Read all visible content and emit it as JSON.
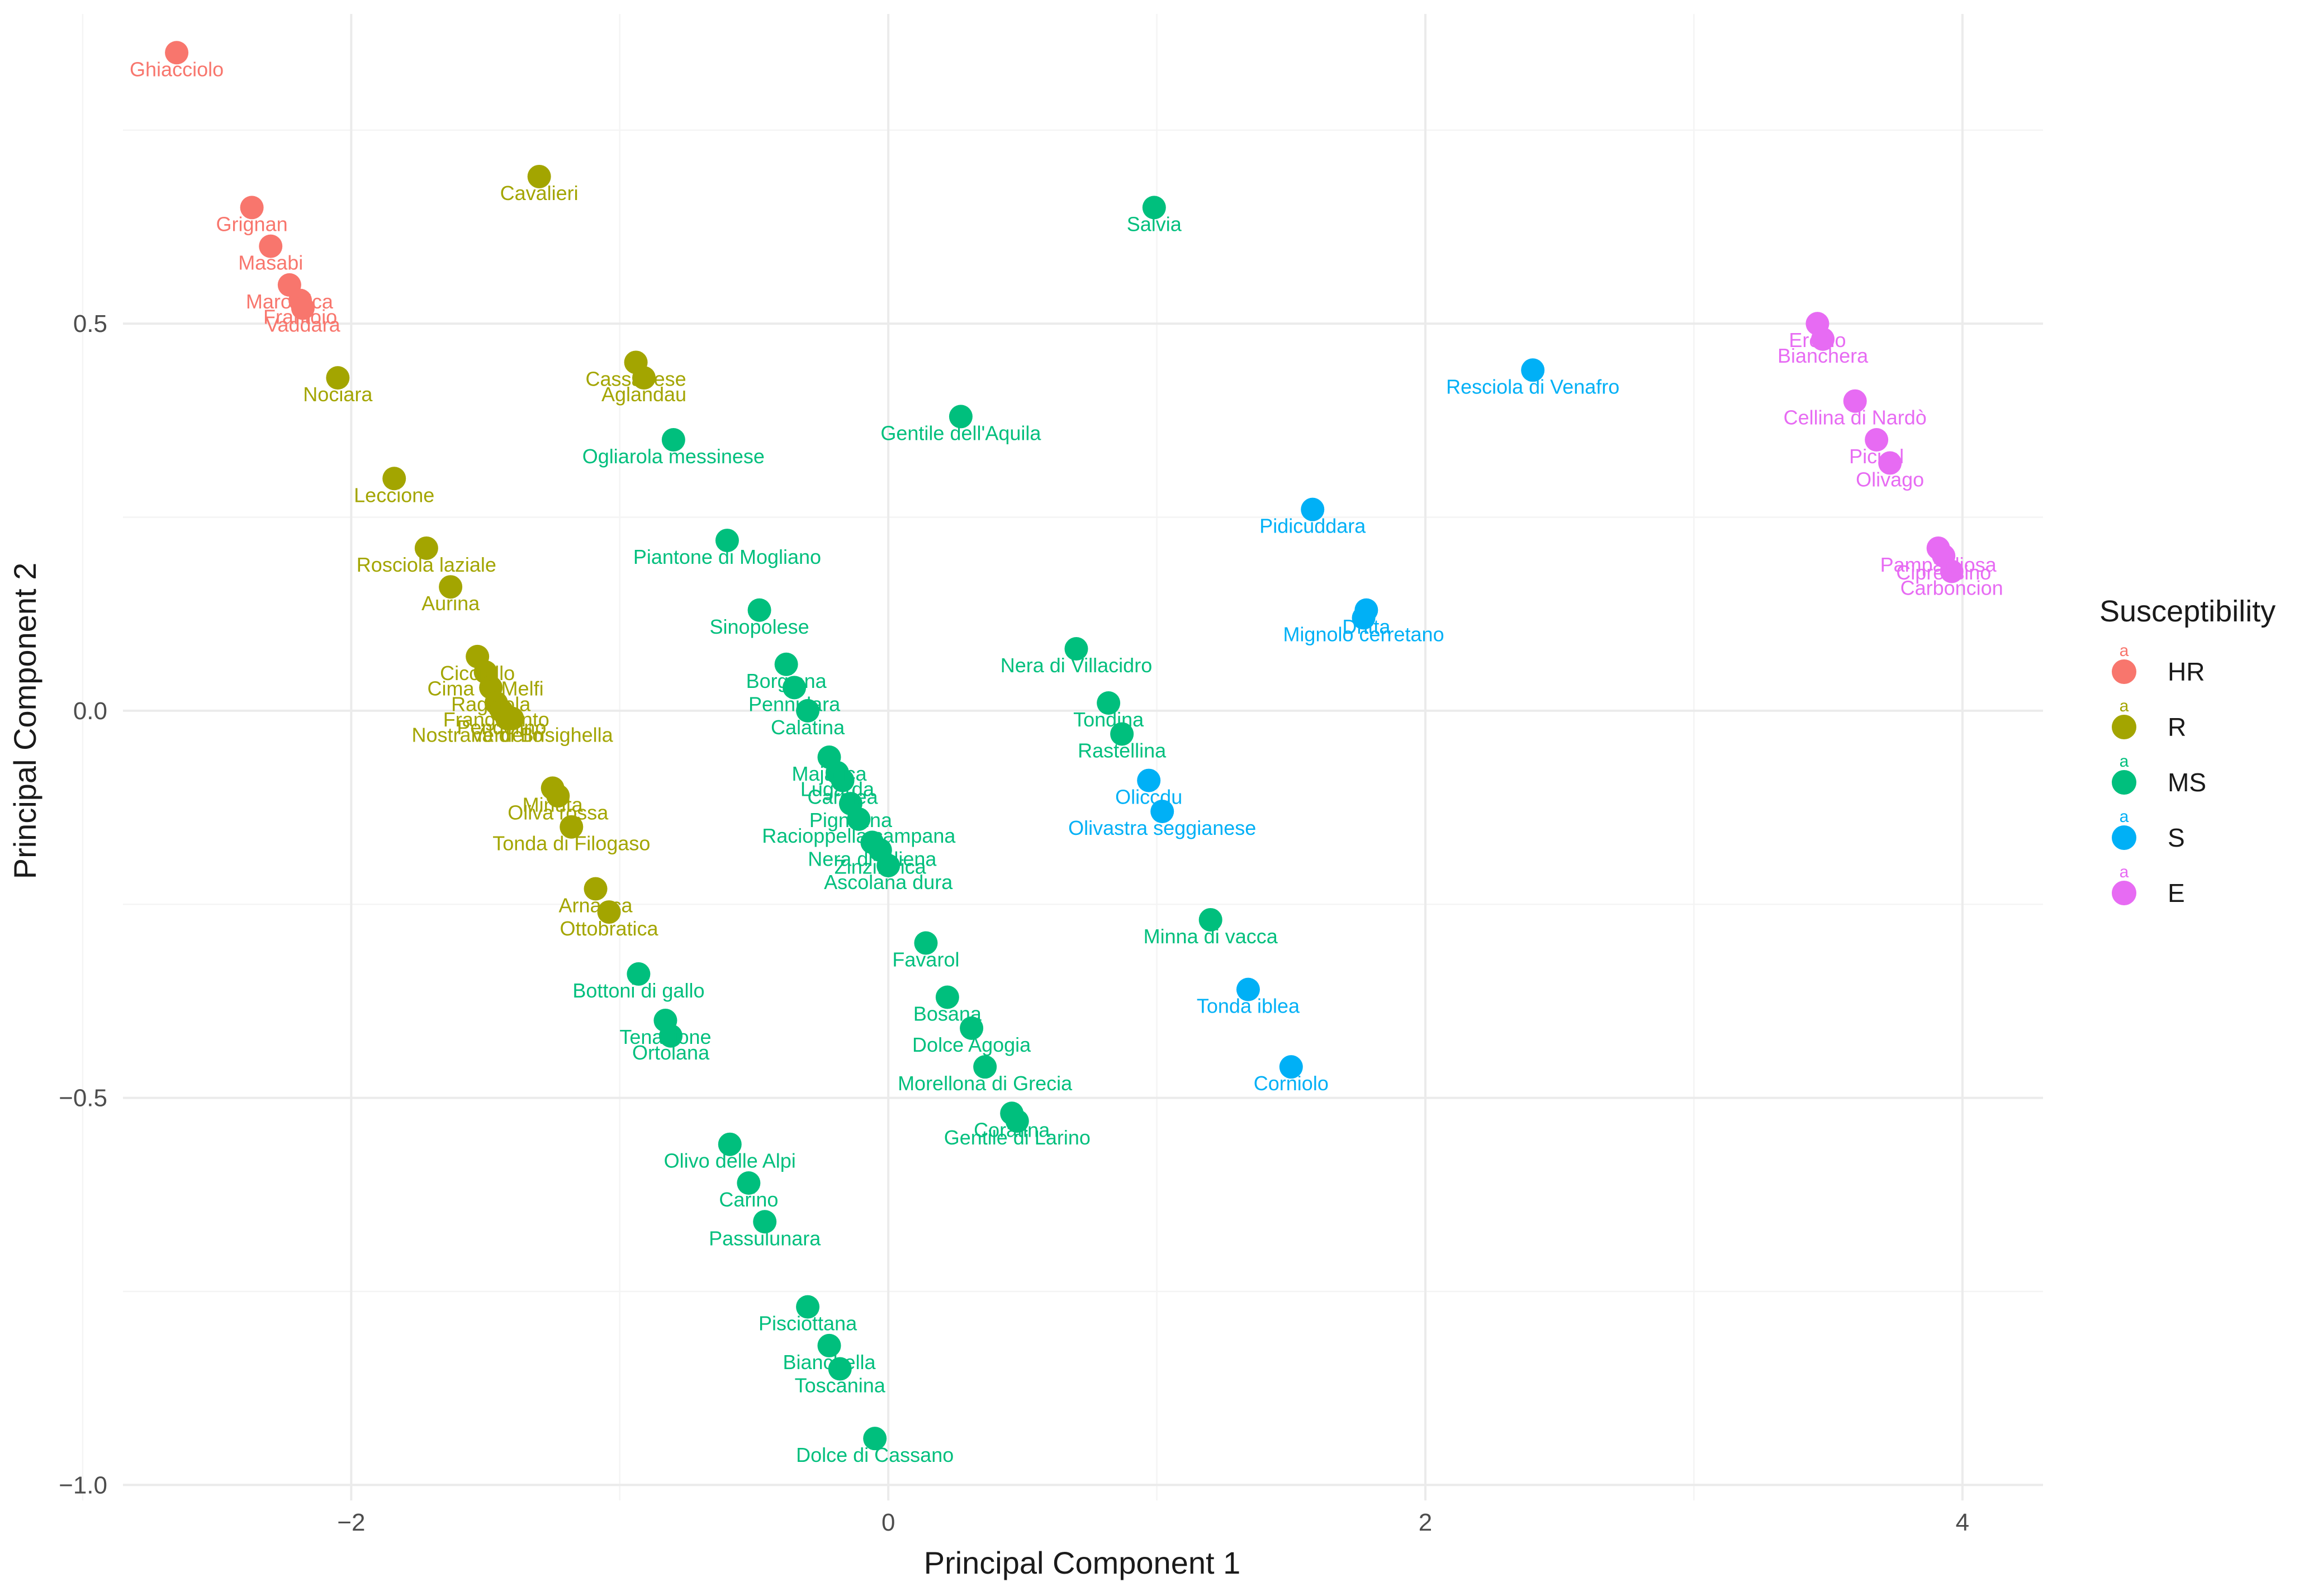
{
  "chart_data": {
    "type": "scatter",
    "title": "",
    "xlabel": "Principal Component 1",
    "ylabel": "Principal Component 2",
    "xlim": [
      -2.85,
      4.3
    ],
    "ylim": [
      -1.02,
      0.9
    ],
    "x_ticks": [
      -2,
      0,
      2,
      4
    ],
    "x_tick_labels": [
      "−2",
      "0",
      "2",
      "4"
    ],
    "x_minor": [
      -3,
      -1,
      1,
      3
    ],
    "y_ticks": [
      -1.0,
      -0.5,
      0.0,
      0.5
    ],
    "y_tick_labels": [
      "−1.0",
      "−0.5",
      "0.0",
      "0.5"
    ],
    "y_minor": [
      -0.75,
      -0.25,
      0.25,
      0.75
    ],
    "grid": true,
    "legend": {
      "title": "Susceptibility",
      "position": "right",
      "key_glyph": "a",
      "items": [
        {
          "name": "HR",
          "color": "#F8766D"
        },
        {
          "name": "R",
          "color": "#A3A500"
        },
        {
          "name": "MS",
          "color": "#00BF7D"
        },
        {
          "name": "S",
          "color": "#00B0F6"
        },
        {
          "name": "E",
          "color": "#E76BF3"
        }
      ]
    },
    "series": [
      {
        "name": "HR",
        "color": "#F8766D",
        "points": [
          {
            "label": "Ghiacciolo",
            "x": -2.65,
            "y": 0.85
          },
          {
            "label": "Grignan",
            "x": -2.37,
            "y": 0.65
          },
          {
            "label": "Masabi",
            "x": -2.3,
            "y": 0.6
          },
          {
            "label": "Marostica",
            "x": -2.23,
            "y": 0.55
          },
          {
            "label": "Frantoio",
            "x": -2.19,
            "y": 0.53
          },
          {
            "label": "Vaddara",
            "x": -2.18,
            "y": 0.52
          }
        ]
      },
      {
        "name": "R",
        "color": "#A3A500",
        "points": [
          {
            "label": "Cavalieri",
            "x": -1.3,
            "y": 0.69
          },
          {
            "label": "Nociara",
            "x": -2.05,
            "y": 0.43
          },
          {
            "label": "Cassanese",
            "x": -0.94,
            "y": 0.45
          },
          {
            "label": "Aglandau",
            "x": -0.91,
            "y": 0.43
          },
          {
            "label": "Leccione",
            "x": -1.84,
            "y": 0.3
          },
          {
            "label": "Rosciola laziale",
            "x": -1.72,
            "y": 0.21
          },
          {
            "label": "Aurina",
            "x": -1.63,
            "y": 0.16
          },
          {
            "label": "Cicciello",
            "x": -1.53,
            "y": 0.07
          },
          {
            "label": "Cima di Melfi",
            "x": -1.5,
            "y": 0.05
          },
          {
            "label": "Raggiola",
            "x": -1.48,
            "y": 0.03
          },
          {
            "label": "Frangivento",
            "x": -1.46,
            "y": 0.01
          },
          {
            "label": "Pendolino",
            "x": -1.44,
            "y": 0.0
          },
          {
            "label": "Verdello",
            "x": -1.42,
            "y": -0.01
          },
          {
            "label": "Nostrana di Brisighella",
            "x": -1.4,
            "y": -0.01
          },
          {
            "label": "Minuta",
            "x": -1.25,
            "y": -0.1
          },
          {
            "label": "Oliva rossa",
            "x": -1.23,
            "y": -0.11
          },
          {
            "label": "Tonda di Filogaso",
            "x": -1.18,
            "y": -0.15
          },
          {
            "label": "Arnasca",
            "x": -1.09,
            "y": -0.23
          },
          {
            "label": "Ottobratica",
            "x": -1.04,
            "y": -0.26
          }
        ]
      },
      {
        "name": "MS",
        "color": "#00BF7D",
        "points": [
          {
            "label": "Salvia",
            "x": 0.99,
            "y": 0.65
          },
          {
            "label": "Gentile dell'Aquila",
            "x": 0.27,
            "y": 0.38
          },
          {
            "label": "Ogliarola messinese",
            "x": -0.8,
            "y": 0.35
          },
          {
            "label": "Piantone di Mogliano",
            "x": -0.6,
            "y": 0.22
          },
          {
            "label": "Sinopolese",
            "x": -0.48,
            "y": 0.13
          },
          {
            "label": "Nera di Villacidro",
            "x": 0.7,
            "y": 0.08
          },
          {
            "label": "Borgiona",
            "x": -0.38,
            "y": 0.06
          },
          {
            "label": "Pennulara",
            "x": -0.35,
            "y": 0.03
          },
          {
            "label": "Calatina",
            "x": -0.3,
            "y": 0.0
          },
          {
            "label": "Tondina",
            "x": 0.82,
            "y": 0.01
          },
          {
            "label": "Rastellina",
            "x": 0.87,
            "y": -0.03
          },
          {
            "label": "Majatica",
            "x": -0.22,
            "y": -0.06
          },
          {
            "label": "Lugarda",
            "x": -0.19,
            "y": -0.08
          },
          {
            "label": "Carolea",
            "x": -0.17,
            "y": -0.09
          },
          {
            "label": "Pignolina",
            "x": -0.14,
            "y": -0.12
          },
          {
            "label": "Racioppella campana",
            "x": -0.11,
            "y": -0.14
          },
          {
            "label": "Nera di Oliena",
            "x": -0.06,
            "y": -0.17
          },
          {
            "label": "Zinzifarica",
            "x": -0.03,
            "y": -0.18
          },
          {
            "label": "Ascolana dura",
            "x": 0.0,
            "y": -0.2
          },
          {
            "label": "Minna di vacca",
            "x": 1.2,
            "y": -0.27
          },
          {
            "label": "Favarol",
            "x": 0.14,
            "y": -0.3
          },
          {
            "label": "Bottoni di gallo",
            "x": -0.93,
            "y": -0.34
          },
          {
            "label": "Bosana",
            "x": 0.22,
            "y": -0.37
          },
          {
            "label": "Tenacione",
            "x": -0.83,
            "y": -0.4
          },
          {
            "label": "Ortolana",
            "x": -0.81,
            "y": -0.42
          },
          {
            "label": "Dolce Agogia",
            "x": 0.31,
            "y": -0.41
          },
          {
            "label": "Morellona di Grecia",
            "x": 0.36,
            "y": -0.46
          },
          {
            "label": "Coratina",
            "x": 0.46,
            "y": -0.52
          },
          {
            "label": "Gentile di Larino",
            "x": 0.48,
            "y": -0.53
          },
          {
            "label": "Olivo delle Alpi",
            "x": -0.59,
            "y": -0.56
          },
          {
            "label": "Carino",
            "x": -0.52,
            "y": -0.61
          },
          {
            "label": "Passulunara",
            "x": -0.46,
            "y": -0.66
          },
          {
            "label": "Pisciottana",
            "x": -0.3,
            "y": -0.77
          },
          {
            "label": "Bianchella",
            "x": -0.22,
            "y": -0.82
          },
          {
            "label": "Toscanina",
            "x": -0.18,
            "y": -0.85
          },
          {
            "label": "Dolce di Cassano",
            "x": -0.05,
            "y": -0.94
          }
        ]
      },
      {
        "name": "S",
        "color": "#00B0F6",
        "points": [
          {
            "label": "Resciola di Venafro",
            "x": 2.4,
            "y": 0.44
          },
          {
            "label": "Pidicuddara",
            "x": 1.58,
            "y": 0.26
          },
          {
            "label": "Dritta",
            "x": 1.78,
            "y": 0.13
          },
          {
            "label": "Mignolo cerretano",
            "x": 1.77,
            "y": 0.12
          },
          {
            "label": "Oliccdu",
            "x": 0.97,
            "y": -0.09
          },
          {
            "label": "Olivastra seggianese",
            "x": 1.02,
            "y": -0.13
          },
          {
            "label": "Tonda iblea",
            "x": 1.34,
            "y": -0.36
          },
          {
            "label": "Corniolo",
            "x": 1.5,
            "y": -0.46
          }
        ]
      },
      {
        "name": "E",
        "color": "#E76BF3",
        "points": [
          {
            "label": "Ercino",
            "x": 3.46,
            "y": 0.5
          },
          {
            "label": "Bianchera",
            "x": 3.48,
            "y": 0.48
          },
          {
            "label": "Cellina di Nardò",
            "x": 3.6,
            "y": 0.4
          },
          {
            "label": "Picual",
            "x": 3.68,
            "y": 0.35
          },
          {
            "label": "Olivago",
            "x": 3.73,
            "y": 0.32
          },
          {
            "label": "Pampagliosa",
            "x": 3.91,
            "y": 0.21
          },
          {
            "label": "Cipressino",
            "x": 3.93,
            "y": 0.2
          },
          {
            "label": "Carboncion",
            "x": 3.96,
            "y": 0.18
          }
        ]
      }
    ]
  }
}
